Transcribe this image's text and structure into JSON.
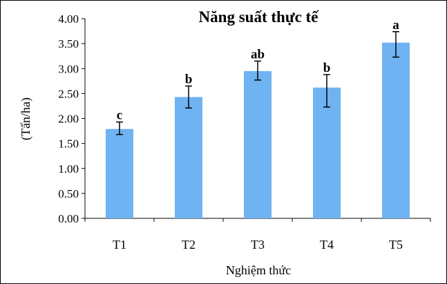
{
  "chart_data": {
    "type": "bar",
    "title": "Năng suất thực tế",
    "xlabel": "Nghiệm thức",
    "ylabel": "(Tấn/ha)",
    "categories": [
      "T1",
      "T2",
      "T3",
      "T4",
      "T5"
    ],
    "values": [
      1.79,
      2.43,
      2.95,
      2.62,
      3.52
    ],
    "error_low": [
      1.68,
      2.21,
      2.77,
      2.23,
      3.23
    ],
    "error_high": [
      1.93,
      2.65,
      3.15,
      2.88,
      3.74
    ],
    "significance_labels": [
      "c",
      "b",
      "ab",
      "b",
      "a"
    ],
    "ylim": [
      0,
      4
    ],
    "yticks": [
      "0.00",
      "0.50",
      "1.00",
      "1.50",
      "2.00",
      "2.50",
      "3.00",
      "3.50",
      "4.00"
    ],
    "grid": false,
    "legend": "none",
    "bar_color": "#6fb3f2",
    "error_bar_color": "#000000"
  }
}
